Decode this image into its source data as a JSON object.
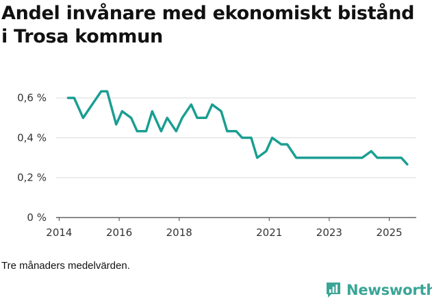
{
  "chart_data": {
    "type": "line",
    "title": "Andel invånare med ekonomiskt bistånd i Trosa kommun",
    "xlabel": "",
    "ylabel": "",
    "ylim": [
      0,
      0.7
    ],
    "xlim": [
      2013.9,
      2025.9
    ],
    "y_ticks": [
      0,
      0.2,
      0.4,
      0.6
    ],
    "y_tick_labels": [
      "0 %",
      "0,2 %",
      "0,4 %",
      "0,6 %"
    ],
    "x_ticks": [
      2014,
      2016,
      2018,
      2021,
      2023,
      2025
    ],
    "x_tick_labels": [
      "2014",
      "2016",
      "2018",
      "2021",
      "2023",
      "2025"
    ],
    "grid": true,
    "series": [
      {
        "name": "Andel invånare med ekonomiskt bistånd",
        "color": "#1a9e92",
        "x": [
          2014.3,
          2014.5,
          2014.8,
          2015.1,
          2015.4,
          2015.6,
          2015.9,
          2016.1,
          2016.4,
          2016.6,
          2016.9,
          2017.1,
          2017.4,
          2017.6,
          2017.9,
          2018.1,
          2018.4,
          2018.6,
          2018.9,
          2019.1,
          2019.4,
          2019.6,
          2019.9,
          2020.1,
          2020.4,
          2020.6,
          2020.9,
          2021.1,
          2021.4,
          2021.6,
          2021.9,
          2022.1,
          2022.4,
          2022.6,
          2022.9,
          2023.1,
          2023.4,
          2023.6,
          2023.9,
          2024.1,
          2024.4,
          2024.6,
          2024.9,
          2025.1,
          2025.4,
          2025.6
        ],
        "values": [
          0.6,
          0.6,
          0.5,
          0.567,
          0.633,
          0.633,
          0.467,
          0.533,
          0.5,
          0.433,
          0.433,
          0.533,
          0.433,
          0.5,
          0.433,
          0.5,
          0.567,
          0.5,
          0.5,
          0.567,
          0.533,
          0.433,
          0.433,
          0.4,
          0.4,
          0.3,
          0.333,
          0.4,
          0.367,
          0.367,
          0.3,
          0.3,
          0.3,
          0.3,
          0.3,
          0.3,
          0.3,
          0.3,
          0.3,
          0.3,
          0.333,
          0.3,
          0.3,
          0.3,
          0.3,
          0.267
        ]
      }
    ]
  },
  "note": "Tre månaders medelvärden.",
  "brand": {
    "name": "Newsworthy",
    "icon": "newsworthy-logo-icon",
    "color": "#3aa596"
  }
}
